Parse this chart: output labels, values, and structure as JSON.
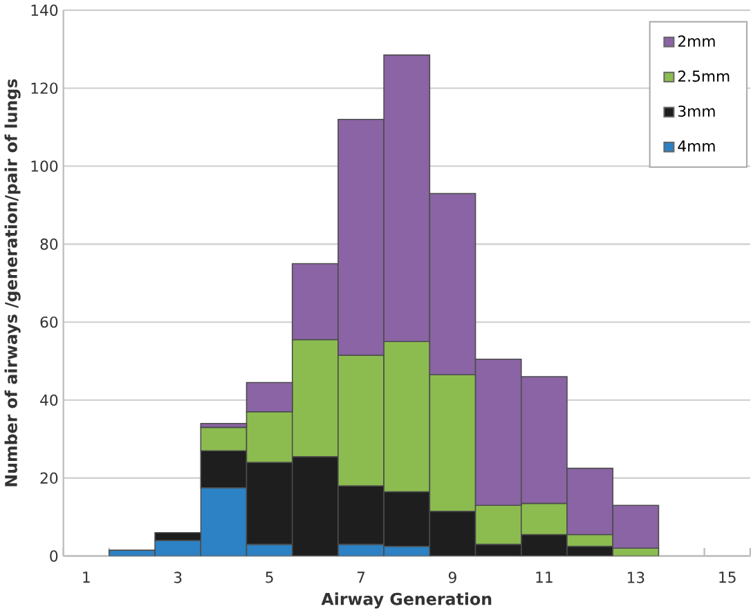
{
  "chart_data": {
    "type": "bar",
    "stacked": true,
    "xlabel": "Airway Generation",
    "ylabel": "Number of airways /generation/pair of lungs",
    "categories": [
      "1",
      null,
      "3",
      null,
      "5",
      null,
      "7",
      null,
      "9",
      null,
      "11",
      null,
      "13",
      null,
      "15"
    ],
    "series": [
      {
        "name": "4mm",
        "color": "#2c82c4",
        "values": [
          null,
          1.5,
          4,
          17.5,
          3,
          null,
          3,
          2.5,
          null,
          null,
          null,
          null,
          null,
          null,
          null
        ]
      },
      {
        "name": "3mm",
        "color": "#1e1e1e",
        "values": [
          null,
          null,
          2,
          9.5,
          21,
          25.5,
          15,
          14,
          11.5,
          3,
          5.5,
          2.5,
          null,
          null,
          null
        ]
      },
      {
        "name": "2.5mm",
        "color": "#8cbc50",
        "values": [
          null,
          null,
          null,
          6,
          13,
          30,
          33.5,
          38.5,
          35,
          10,
          8,
          3,
          2,
          null,
          null
        ]
      },
      {
        "name": "2mm",
        "color": "#8a64a4",
        "values": [
          null,
          null,
          null,
          1,
          7.5,
          19.5,
          60.5,
          73.5,
          46.5,
          37.5,
          32.5,
          17,
          11,
          null,
          null
        ]
      }
    ],
    "ylim": [
      0,
      140
    ],
    "yticks": [
      0,
      20,
      40,
      60,
      80,
      100,
      120,
      140
    ],
    "grid": "y",
    "legend": "top right"
  }
}
